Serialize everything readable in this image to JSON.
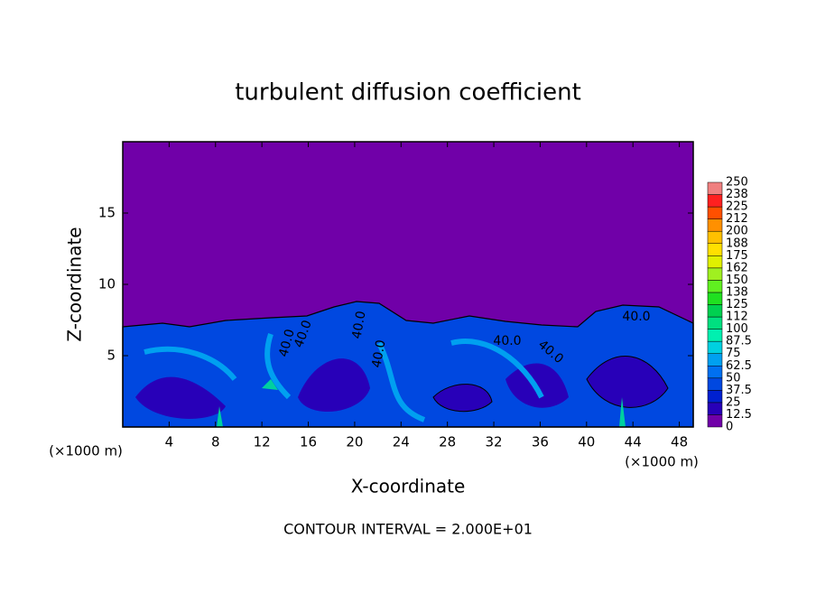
{
  "chart_data": {
    "type": "contour",
    "title": "turbulent diffusion coefficient",
    "xlabel": "X-coordinate",
    "ylabel": "Z-coordinate",
    "x_units": [
      "(×1000 m)",
      "(×1000 m)"
    ],
    "footer": "CONTOUR INTERVAL = 2.000E+01",
    "contour_labels": [
      "40.0",
      "40.0",
      "40.0",
      "40.0",
      "40.0",
      "40.0",
      "40.0"
    ],
    "xlim": [
      0,
      49.2
    ],
    "ylim": [
      0,
      20
    ],
    "xticks": [
      4,
      8,
      12,
      16,
      20,
      24,
      28,
      32,
      36,
      40,
      44,
      48
    ],
    "yticks": [
      5,
      10,
      15
    ],
    "colorbar": {
      "ticks": [
        0,
        12.5,
        25,
        37.5,
        50,
        62.5,
        75,
        87.5,
        100,
        112,
        125,
        138,
        150,
        162,
        175,
        188,
        200,
        212,
        225,
        238,
        250
      ],
      "colors": [
        "#7000a8",
        "#2800b8",
        "#0020d0",
        "#0048e0",
        "#0070f0",
        "#00a0f0",
        "#00d0e0",
        "#00f0b0",
        "#00e080",
        "#00d050",
        "#20e020",
        "#60f020",
        "#a0f020",
        "#e0f000",
        "#ffe000",
        "#ffc000",
        "#ff9000",
        "#ff5000",
        "#ff2020",
        "#f08080"
      ]
    }
  }
}
